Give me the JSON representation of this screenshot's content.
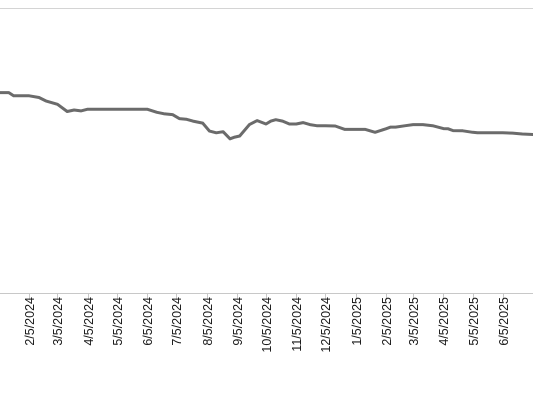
{
  "chart_data": {
    "type": "line",
    "title": "",
    "xlabel": "",
    "ylabel": "",
    "x_ticks": [
      "2/5/2024",
      "3/5/2024",
      "4/5/2024",
      "5/5/2024",
      "6/5/2024",
      "7/5/2024",
      "8/5/2024",
      "9/5/2024",
      "10/5/2024",
      "11/5/2024",
      "12/5/2024",
      "1/5/2025",
      "2/5/2025",
      "3/5/2025",
      "4/5/2025",
      "5/5/2025",
      "6/5/2025"
    ],
    "grid": "horizontal",
    "legend": "none",
    "ylim": [
      0,
      100
    ],
    "xlim": [
      "2024-01-06",
      "2025-07-06"
    ],
    "colors": {
      "line": "#6b6b6b",
      "axis": "#c8c8c8",
      "grid": "#d4d4d4"
    },
    "series": [
      {
        "x": [
          "2024-01-06",
          "2024-01-15",
          "2024-01-20",
          "2024-02-05",
          "2024-02-15",
          "2024-02-22",
          "2024-03-05",
          "2024-03-15",
          "2024-03-22",
          "2024-03-29",
          "2024-04-05",
          "2024-04-12",
          "2024-04-19",
          "2024-04-26",
          "2024-05-05",
          "2024-05-19",
          "2024-06-05",
          "2024-06-15",
          "2024-06-22",
          "2024-07-01",
          "2024-07-08",
          "2024-07-15",
          "2024-07-22",
          "2024-08-01",
          "2024-08-08",
          "2024-08-15",
          "2024-08-22",
          "2024-08-29",
          "2024-09-03",
          "2024-09-08",
          "2024-09-18",
          "2024-09-26",
          "2024-10-05",
          "2024-10-10",
          "2024-10-15",
          "2024-10-22",
          "2024-10-29",
          "2024-11-05",
          "2024-11-12",
          "2024-11-19",
          "2024-11-26",
          "2024-12-05",
          "2024-12-15",
          "2024-12-25",
          "2025-01-05",
          "2025-01-10",
          "2025-01-15",
          "2025-01-25",
          "2025-02-05",
          "2025-02-10",
          "2025-02-15",
          "2025-02-25",
          "2025-03-05",
          "2025-03-15",
          "2025-03-25",
          "2025-04-05",
          "2025-04-10",
          "2025-04-15",
          "2025-04-25",
          "2025-05-05",
          "2025-05-10",
          "2025-05-20",
          "2025-06-05",
          "2025-06-15",
          "2025-06-25",
          "2025-07-06"
        ],
        "values": [
          70.3,
          70.3,
          69.2,
          69.2,
          68.6,
          67.4,
          66.2,
          63.7,
          64.2,
          63.9,
          64.5,
          64.5,
          64.5,
          64.5,
          64.5,
          64.5,
          64.5,
          63.4,
          62.9,
          62.6,
          61.2,
          61.0,
          60.3,
          59.6,
          56.8,
          56.2,
          56.6,
          54.1,
          54.7,
          55.1,
          59.1,
          60.5,
          59.3,
          60.3,
          60.8,
          60.3,
          59.3,
          59.3,
          59.8,
          59.1,
          58.7,
          58.7,
          58.6,
          57.4,
          57.4,
          57.4,
          57.4,
          56.4,
          57.6,
          58.2,
          58.2,
          58.7,
          59.1,
          59.1,
          58.7,
          57.7,
          57.6,
          57.0,
          56.9,
          56.4,
          56.2,
          56.2,
          56.2,
          56.1,
          55.8,
          55.6
        ]
      }
    ]
  }
}
